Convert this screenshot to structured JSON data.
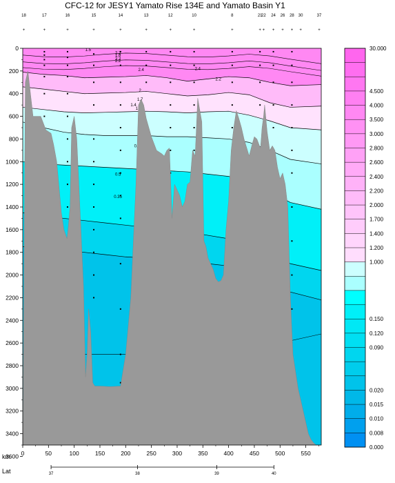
{
  "chart_data": {
    "type": "contour-section",
    "title": "CFC-12 for JESY1 Yamato Rise 134E and Yamato Basin Y1",
    "xlabel": "km",
    "x_secondary_label": "Lat",
    "xlim": [
      0,
      580
    ],
    "ylim": [
      3500,
      0
    ],
    "x_ticks": [
      0,
      50,
      100,
      150,
      200,
      250,
      300,
      350,
      400,
      450,
      500,
      550
    ],
    "y_ticks": [
      0,
      200,
      400,
      600,
      800,
      1000,
      1200,
      1400,
      1600,
      1800,
      2000,
      2200,
      2400,
      2600,
      2800,
      3000,
      3200,
      3400,
      3600
    ],
    "lat_ticks": [
      {
        "km": 55,
        "label": "37"
      },
      {
        "km": 223,
        "label": "38"
      },
      {
        "km": 377,
        "label": "39"
      },
      {
        "km": 488,
        "label": "40"
      }
    ],
    "stations": [
      {
        "km": 2,
        "label": "18"
      },
      {
        "km": 42,
        "label": "17"
      },
      {
        "km": 87,
        "label": "16"
      },
      {
        "km": 138,
        "label": "15"
      },
      {
        "km": 190,
        "label": "14"
      },
      {
        "km": 240,
        "label": "13"
      },
      {
        "km": 287,
        "label": "12"
      },
      {
        "km": 333,
        "label": "10"
      },
      {
        "km": 407,
        "label": "8"
      },
      {
        "km": 461,
        "label": "21"
      },
      {
        "km": 468,
        "label": "22"
      },
      {
        "km": 487,
        "label": "24"
      },
      {
        "km": 505,
        "label": "26"
      },
      {
        "km": 523,
        "label": "28"
      },
      {
        "km": 540,
        "label": "30"
      },
      {
        "km": 576,
        "label": "37"
      }
    ],
    "colorbar": {
      "levels": [
        "30.000",
        "",
        "",
        "4.500",
        "4.000",
        "3.500",
        "3.000",
        "2.800",
        "2.600",
        "2.400",
        "2.200",
        "2.000",
        "1.700",
        "1.400",
        "1.200",
        "1.000",
        "",
        "",
        "",
        "0.150",
        "0.120",
        "0.090",
        "",
        "",
        "0.020",
        "0.015",
        "0.010",
        "0.008",
        "0.000"
      ],
      "colors": [
        "#ff66ee",
        "#ff6ef0",
        "#ff77f1",
        "#ff80f2",
        "#ff88f3",
        "#ff91f4",
        "#ff99f5",
        "#ffa1f6",
        "#ffaaf7",
        "#ffb2f8",
        "#ffbbf9",
        "#ffc4fa",
        "#ffccfb",
        "#ffd5fc",
        "#ffddfd",
        "#ccffff",
        "#aaffff",
        "#00ffff",
        "#00f0f8",
        "#00e8f5",
        "#00dff2",
        "#00d6ef",
        "#00cdec",
        "#00c3ea",
        "#00b8e8",
        "#00adea",
        "#00a0ee",
        "#0090f2"
      ]
    },
    "bands": [
      {
        "top": 0,
        "depths": [
          210,
          230,
          240,
          260,
          255,
          250,
          240,
          260,
          290,
          270,
          250,
          260,
          300,
          330,
          320
        ],
        "color": "#ff88f3"
      },
      {
        "depths": [
          340,
          360,
          380,
          400,
          395,
          390,
          380,
          400,
          420,
          410,
          390,
          410,
          480,
          520,
          510
        ],
        "color": "#ffbbf9"
      },
      {
        "depths": [
          520,
          540,
          560,
          570,
          565,
          560,
          555,
          560,
          570,
          560,
          555,
          590,
          640,
          700,
          720
        ],
        "color": "#ffe2fd"
      },
      {
        "depths": [
          650,
          700,
          740,
          760,
          770,
          770,
          770,
          780,
          780,
          790,
          800,
          830,
          900,
          980,
          1020
        ],
        "color": "#ccffff"
      },
      {
        "depths": [
          1000,
          1020,
          1030,
          1040,
          1050,
          1060,
          1070,
          1080,
          1090,
          1110,
          1130,
          1170,
          1260,
          1360,
          1420
        ],
        "color": "#aaffff"
      },
      {
        "depths": [
          1450,
          1480,
          1500,
          1520,
          1540,
          1560,
          1580,
          1600,
          1620,
          1650,
          1680,
          1720,
          1800,
          1900,
          1960
        ],
        "color": "#00f0f8"
      },
      {
        "depths": [
          1750,
          1760,
          1780,
          1800,
          1820,
          1840,
          1850,
          1860,
          1880,
          1900,
          1920,
          1960,
          2040,
          2150,
          2220
        ],
        "color": "#00d6ef"
      },
      {
        "depths": [
          3600,
          3600,
          3600,
          3600,
          3600,
          3600,
          3600,
          3600,
          3600,
          3600,
          3600,
          3600,
          3600,
          3600,
          3600
        ],
        "color": "#00c3ea"
      }
    ],
    "band_x_km": [
      0,
      40,
      80,
      120,
      160,
      200,
      240,
      280,
      320,
      360,
      400,
      440,
      480,
      520,
      580
    ],
    "contour_labels": [
      {
        "km": 127,
        "depth": 12,
        "text": "1.5"
      },
      {
        "km": 185,
        "depth": 40,
        "text": "2.2"
      },
      {
        "km": 185,
        "depth": 90,
        "text": "2.2"
      },
      {
        "km": 185,
        "depth": 60,
        "text": "1.8"
      },
      {
        "km": 185,
        "depth": 110,
        "text": "2.2"
      },
      {
        "km": 230,
        "depth": 190,
        "text": "2.4"
      },
      {
        "km": 340,
        "depth": 180,
        "text": "2.4"
      },
      {
        "km": 380,
        "depth": 270,
        "text": "2.2"
      },
      {
        "km": 228,
        "depth": 370,
        "text": "2"
      },
      {
        "km": 228,
        "depth": 450,
        "text": "1.7"
      },
      {
        "km": 215,
        "depth": 500,
        "text": "1.4"
      },
      {
        "km": 225,
        "depth": 530,
        "text": "1.2"
      },
      {
        "km": 230,
        "depth": 600,
        "text": "1"
      },
      {
        "km": 222,
        "depth": 860,
        "text": "0.7"
      },
      {
        "km": 185,
        "depth": 1110,
        "text": "0.5"
      },
      {
        "km": 185,
        "depth": 1310,
        "text": "0.35"
      }
    ],
    "bathymetry": {
      "km": [
        0,
        5,
        10,
        20,
        35,
        45,
        55,
        60,
        66,
        70,
        75,
        80,
        86,
        88,
        92,
        95,
        100,
        105,
        110,
        115,
        118,
        122,
        125,
        128,
        132,
        136,
        140,
        150,
        170,
        190,
        200,
        210,
        220,
        225,
        230,
        235,
        240,
        250,
        260,
        270,
        275,
        280,
        285,
        290,
        295,
        300,
        305,
        310,
        315,
        320,
        325,
        330,
        335,
        340,
        348,
        352,
        356,
        360,
        365,
        370,
        375,
        380,
        385,
        390,
        395,
        400,
        405,
        410,
        415,
        420,
        425,
        430,
        440,
        445,
        450,
        455,
        460,
        462,
        465,
        468,
        470,
        475,
        480,
        485,
        490,
        495,
        500,
        505,
        510,
        515,
        520,
        525,
        535,
        545,
        555,
        560,
        565,
        570,
        580
      ],
      "depth": [
        3600,
        300,
        200,
        600,
        600,
        720,
        750,
        850,
        1000,
        1200,
        1450,
        1600,
        1680,
        1600,
        1400,
        700,
        600,
        800,
        1300,
        1800,
        2100,
        2900,
        2700,
        2300,
        2500,
        2950,
        2980,
        2980,
        2985,
        2980,
        2700,
        2200,
        1200,
        500,
        450,
        500,
        620,
        780,
        900,
        930,
        950,
        900,
        880,
        1500,
        1200,
        1250,
        1300,
        1400,
        1350,
        1200,
        1180,
        900,
        950,
        440,
        650,
        1700,
        1750,
        1850,
        1900,
        1950,
        2030,
        2060,
        2050,
        2000,
        1600,
        1350,
        900,
        700,
        550,
        620,
        700,
        800,
        950,
        860,
        780,
        800,
        860,
        880,
        700,
        600,
        500,
        740,
        900,
        860,
        900,
        1050,
        1150,
        1100,
        1200,
        1400,
        2200,
        2700,
        3000,
        3200,
        3400,
        3450,
        3480,
        3500,
        3550
      ]
    },
    "sample_points": [
      {
        "km": 42,
        "depth": 30
      },
      {
        "km": 42,
        "depth": 60
      },
      {
        "km": 42,
        "depth": 100
      },
      {
        "km": 42,
        "depth": 150
      },
      {
        "km": 42,
        "depth": 250
      },
      {
        "km": 42,
        "depth": 400
      },
      {
        "km": 42,
        "depth": 600
      },
      {
        "km": 87,
        "depth": 30
      },
      {
        "km": 87,
        "depth": 80
      },
      {
        "km": 87,
        "depth": 150
      },
      {
        "km": 87,
        "depth": 250
      },
      {
        "km": 87,
        "depth": 400
      },
      {
        "km": 87,
        "depth": 600
      },
      {
        "km": 87,
        "depth": 800
      },
      {
        "km": 87,
        "depth": 1000
      },
      {
        "km": 87,
        "depth": 1200
      },
      {
        "km": 87,
        "depth": 1400
      },
      {
        "km": 138,
        "depth": 50
      },
      {
        "km": 138,
        "depth": 150
      },
      {
        "km": 138,
        "depth": 300
      },
      {
        "km": 138,
        "depth": 500
      },
      {
        "km": 138,
        "depth": 800
      },
      {
        "km": 138,
        "depth": 1000
      },
      {
        "km": 138,
        "depth": 1200
      },
      {
        "km": 138,
        "depth": 1400
      },
      {
        "km": 138,
        "depth": 1600
      },
      {
        "km": 138,
        "depth": 1800
      },
      {
        "km": 138,
        "depth": 2000
      },
      {
        "km": 138,
        "depth": 2200
      },
      {
        "km": 190,
        "depth": 30
      },
      {
        "km": 190,
        "depth": 150
      },
      {
        "km": 190,
        "depth": 300
      },
      {
        "km": 190,
        "depth": 500
      },
      {
        "km": 190,
        "depth": 700
      },
      {
        "km": 190,
        "depth": 900
      },
      {
        "km": 190,
        "depth": 1100
      },
      {
        "km": 190,
        "depth": 1300
      },
      {
        "km": 190,
        "depth": 1500
      },
      {
        "km": 190,
        "depth": 1900
      },
      {
        "km": 190,
        "depth": 2300
      },
      {
        "km": 190,
        "depth": 2700
      },
      {
        "km": 190,
        "depth": 2950
      },
      {
        "km": 240,
        "depth": 30
      },
      {
        "km": 240,
        "depth": 150
      },
      {
        "km": 240,
        "depth": 300
      },
      {
        "km": 287,
        "depth": 30
      },
      {
        "km": 287,
        "depth": 150
      },
      {
        "km": 287,
        "depth": 300
      },
      {
        "km": 287,
        "depth": 500
      },
      {
        "km": 287,
        "depth": 700
      },
      {
        "km": 287,
        "depth": 900
      },
      {
        "km": 287,
        "depth": 1100
      },
      {
        "km": 287,
        "depth": 1300
      },
      {
        "km": 333,
        "depth": 30
      },
      {
        "km": 333,
        "depth": 150
      },
      {
        "km": 333,
        "depth": 300
      },
      {
        "km": 333,
        "depth": 500
      },
      {
        "km": 333,
        "depth": 700
      },
      {
        "km": 333,
        "depth": 900
      },
      {
        "km": 333,
        "depth": 1100
      },
      {
        "km": 333,
        "depth": 1300
      },
      {
        "km": 333,
        "depth": 1500
      },
      {
        "km": 333,
        "depth": 1700
      },
      {
        "km": 407,
        "depth": 30
      },
      {
        "km": 407,
        "depth": 150
      },
      {
        "km": 407,
        "depth": 300
      },
      {
        "km": 407,
        "depth": 500
      },
      {
        "km": 407,
        "depth": 700
      },
      {
        "km": 407,
        "depth": 900
      },
      {
        "km": 407,
        "depth": 1100
      },
      {
        "km": 407,
        "depth": 1300
      },
      {
        "km": 407,
        "depth": 1500
      },
      {
        "km": 407,
        "depth": 1700
      },
      {
        "km": 407,
        "depth": 1900
      },
      {
        "km": 461,
        "depth": 30
      },
      {
        "km": 461,
        "depth": 150
      },
      {
        "km": 461,
        "depth": 300
      },
      {
        "km": 461,
        "depth": 500
      },
      {
        "km": 487,
        "depth": 30
      },
      {
        "km": 487,
        "depth": 150
      },
      {
        "km": 487,
        "depth": 300
      },
      {
        "km": 487,
        "depth": 500
      },
      {
        "km": 487,
        "depth": 700
      },
      {
        "km": 487,
        "depth": 900
      },
      {
        "km": 523,
        "depth": 30
      },
      {
        "km": 523,
        "depth": 150
      },
      {
        "km": 523,
        "depth": 300
      },
      {
        "km": 523,
        "depth": 500
      },
      {
        "km": 523,
        "depth": 700
      },
      {
        "km": 523,
        "depth": 900
      },
      {
        "km": 523,
        "depth": 1100
      },
      {
        "km": 523,
        "depth": 1400
      },
      {
        "km": 523,
        "depth": 1700
      },
      {
        "km": 523,
        "depth": 2000
      },
      {
        "km": 523,
        "depth": 2300
      },
      {
        "km": 523,
        "depth": 2600
      },
      {
        "km": 523,
        "depth": 2900
      }
    ]
  }
}
